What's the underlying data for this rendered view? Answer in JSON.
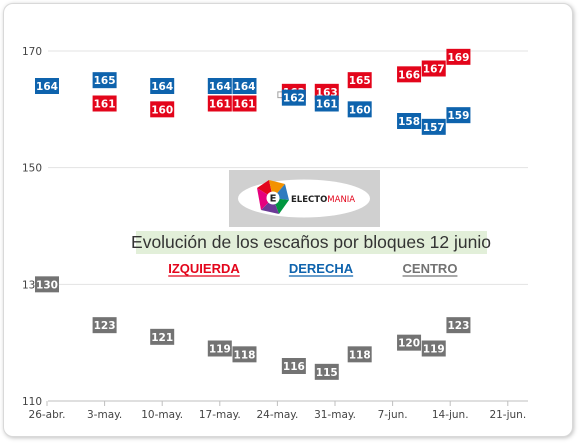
{
  "chart_data": {
    "type": "scatter",
    "caption": "Evolución de los escaños por bloques 12 junio",
    "ylim": [
      110,
      170
    ],
    "yticks": [
      110,
      130,
      150,
      170
    ],
    "x_tick_labels": [
      "26-abr.",
      "3-may.",
      "10-may.",
      "17-may.",
      "24-may.",
      "31-may.",
      "7-jun.",
      "14-jun.",
      "21-jun."
    ],
    "grid": "horizontal",
    "legend": [
      "IZQUIERDA",
      "DERECHA",
      "CENTRO"
    ],
    "series": [
      {
        "name": "IZQUIERDA",
        "color": "#e3051b",
        "points": [
          {
            "x": "2016-05-03",
            "y": 161
          },
          {
            "x": "2016-05-10",
            "y": 160
          },
          {
            "x": "2016-05-17",
            "y": 161
          },
          {
            "x": "2016-05-20",
            "y": 161
          },
          {
            "x": "2016-05-26",
            "y": 163
          },
          {
            "x": "2016-05-30",
            "y": 163
          },
          {
            "x": "2016-06-03",
            "y": 165
          },
          {
            "x": "2016-06-09",
            "y": 166
          },
          {
            "x": "2016-06-12",
            "y": 167
          },
          {
            "x": "2016-06-15",
            "y": 169
          }
        ]
      },
      {
        "name": "DERECHA",
        "color": "#0e63ad",
        "points": [
          {
            "x": "2016-04-26",
            "y": 164
          },
          {
            "x": "2016-05-03",
            "y": 165
          },
          {
            "x": "2016-05-10",
            "y": 164
          },
          {
            "x": "2016-05-17",
            "y": 164
          },
          {
            "x": "2016-05-20",
            "y": 164
          },
          {
            "x": "2016-05-26",
            "y": 162
          },
          {
            "x": "2016-05-30",
            "y": 161
          },
          {
            "x": "2016-06-03",
            "y": 160
          },
          {
            "x": "2016-06-09",
            "y": 158
          },
          {
            "x": "2016-06-12",
            "y": 157
          },
          {
            "x": "2016-06-15",
            "y": 159
          }
        ]
      },
      {
        "name": "CENTRO",
        "color": "#737373",
        "points": [
          {
            "x": "2016-04-26",
            "y": 130
          },
          {
            "x": "2016-05-03",
            "y": 123
          },
          {
            "x": "2016-05-10",
            "y": 121
          },
          {
            "x": "2016-05-17",
            "y": 119
          },
          {
            "x": "2016-05-20",
            "y": 118
          },
          {
            "x": "2016-05-26",
            "y": 116
          },
          {
            "x": "2016-05-30",
            "y": 115
          },
          {
            "x": "2016-06-03",
            "y": 118
          },
          {
            "x": "2016-06-09",
            "y": 120
          },
          {
            "x": "2016-06-12",
            "y": 119
          },
          {
            "x": "2016-06-15",
            "y": 123
          }
        ]
      }
    ]
  },
  "logo": {
    "wordmark_left": "ELECTO",
    "wordmark_right": "MANIA",
    "emblem_letter": "E"
  }
}
